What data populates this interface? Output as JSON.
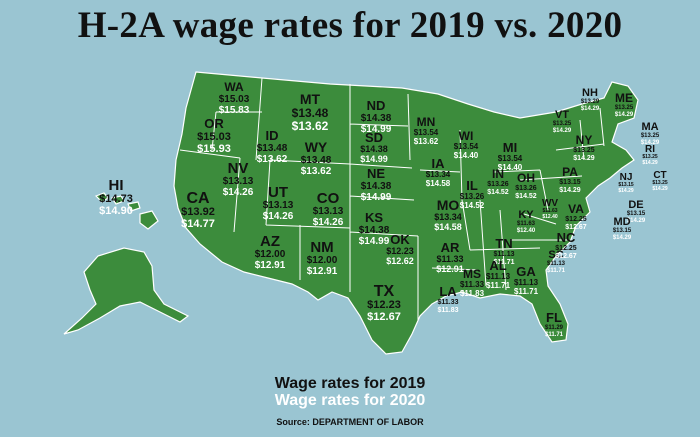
{
  "title": "H-2A wage rates for 2019 vs. 2020",
  "legend": {
    "label_2019": "Wage rates for 2019",
    "label_2020": "Wage rates for 2020",
    "color_2019": "#111111",
    "color_2020": "#ffffff"
  },
  "source": "Source: DEPARTMENT OF LABOR",
  "colors": {
    "land": "#3c8c3c",
    "water": "#9ac5d2",
    "border": "#ffffff"
  },
  "states": [
    {
      "abbr": "WA",
      "w2019": "$15.03",
      "w2020": "$15.83"
    },
    {
      "abbr": "OR",
      "w2019": "$15.03",
      "w2020": "$15.93"
    },
    {
      "abbr": "CA",
      "w2019": "$13.92",
      "w2020": "$14.77"
    },
    {
      "abbr": "NV",
      "w2019": "$13.13",
      "w2020": "$14.26"
    },
    {
      "abbr": "ID",
      "w2019": "$13.48",
      "w2020": "$13.62"
    },
    {
      "abbr": "MT",
      "w2019": "$13.48",
      "w2020": "$13.62"
    },
    {
      "abbr": "WY",
      "w2019": "$13.48",
      "w2020": "$13.62"
    },
    {
      "abbr": "UT",
      "w2019": "$13.13",
      "w2020": "$14.26"
    },
    {
      "abbr": "CO",
      "w2019": "$13.13",
      "w2020": "$14.26"
    },
    {
      "abbr": "AZ",
      "w2019": "$12.00",
      "w2020": "$12.91"
    },
    {
      "abbr": "NM",
      "w2019": "$12.00",
      "w2020": "$12.91"
    },
    {
      "abbr": "ND",
      "w2019": "$14.38",
      "w2020": "$14.99"
    },
    {
      "abbr": "SD",
      "w2019": "$14.38",
      "w2020": "$14.99"
    },
    {
      "abbr": "NE",
      "w2019": "$14.38",
      "w2020": "$14.99"
    },
    {
      "abbr": "KS",
      "w2019": "$14.38",
      "w2020": "$14.99"
    },
    {
      "abbr": "OK",
      "w2019": "$12.23",
      "w2020": "$12.62"
    },
    {
      "abbr": "TX",
      "w2019": "$12.23",
      "w2020": "$12.67"
    },
    {
      "abbr": "MN",
      "w2019": "$13.54",
      "w2020": "$13.62"
    },
    {
      "abbr": "IA",
      "w2019": "$13.34",
      "w2020": "$14.58"
    },
    {
      "abbr": "MO",
      "w2019": "$13.34",
      "w2020": "$14.58"
    },
    {
      "abbr": "AR",
      "w2019": "$11.33",
      "w2020": "$12.91"
    },
    {
      "abbr": "LA",
      "w2019": "$11.33",
      "w2020": "$11.83"
    },
    {
      "abbr": "WI",
      "w2019": "$13.54",
      "w2020": "$14.40"
    },
    {
      "abbr": "MI",
      "w2019": "$13.54",
      "w2020": "$14.40"
    },
    {
      "abbr": "IL",
      "w2019": "$13.26",
      "w2020": "$14.52"
    },
    {
      "abbr": "IN",
      "w2019": "$13.26",
      "w2020": "$14.52"
    },
    {
      "abbr": "OH",
      "w2019": "$13.26",
      "w2020": "$14.52"
    },
    {
      "abbr": "KY",
      "w2019": "$11.63",
      "w2020": "$12.40"
    },
    {
      "abbr": "TN",
      "w2019": "$11.13",
      "w2020": "$11.71"
    },
    {
      "abbr": "MS",
      "w2019": "$11.33",
      "w2020": "$11.83"
    },
    {
      "abbr": "AL",
      "w2019": "$11.13",
      "w2020": "$11.71"
    },
    {
      "abbr": "GA",
      "w2019": "$11.13",
      "w2020": "$11.71"
    },
    {
      "abbr": "FL",
      "w2019": "$11.29",
      "w2020": "$11.71"
    },
    {
      "abbr": "SC",
      "w2019": "$11.13",
      "w2020": "$11.71"
    },
    {
      "abbr": "NC",
      "w2019": "$12.25",
      "w2020": "$12.67"
    },
    {
      "abbr": "VA",
      "w2019": "$12.25",
      "w2020": "$12.67"
    },
    {
      "abbr": "WV",
      "w2019": "$11.63",
      "w2020": "$12.40"
    },
    {
      "abbr": "PA",
      "w2019": "$13.15",
      "w2020": "$14.29"
    },
    {
      "abbr": "NY",
      "w2019": "$13.25",
      "w2020": "$14.29"
    },
    {
      "abbr": "VT",
      "w2019": "$13.25",
      "w2020": "$14.29"
    },
    {
      "abbr": "NH",
      "w2019": "$13.29",
      "w2020": "$14.29"
    },
    {
      "abbr": "ME",
      "w2019": "$13.25",
      "w2020": "$14.29"
    },
    {
      "abbr": "MA",
      "w2019": "$13.25",
      "w2020": "$14.29"
    },
    {
      "abbr": "RI",
      "w2019": "$13.25",
      "w2020": "$14.29"
    },
    {
      "abbr": "CT",
      "w2019": "$13.25",
      "w2020": "$14.29"
    },
    {
      "abbr": "NJ",
      "w2019": "$13.15",
      "w2020": "$14.29"
    },
    {
      "abbr": "DE",
      "w2019": "$13.15",
      "w2020": "$14.29"
    },
    {
      "abbr": "MD",
      "w2019": "$13.15",
      "w2020": "$14.29"
    },
    {
      "abbr": "HI",
      "w2019": "$14.73",
      "w2020": "$14.90"
    }
  ]
}
